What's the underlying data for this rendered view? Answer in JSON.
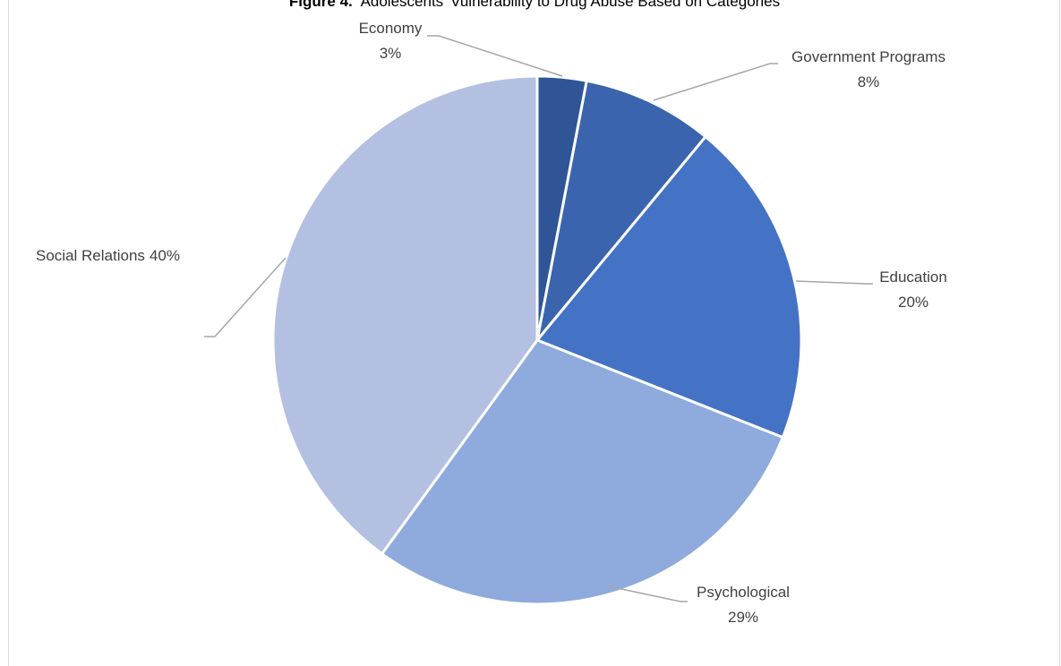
{
  "chart_data": {
    "type": "pie",
    "title": {
      "prefix": "Figure 4.",
      "text": "Adolescents' Vulnerability to Drug Abuse Based on Categories"
    },
    "categories": [
      "Economy",
      "Government Programs",
      "Education",
      "Psychological",
      "Social Relations"
    ],
    "values": [
      3,
      8,
      20,
      29,
      40
    ],
    "value_labels": [
      "3%",
      "8%",
      "20%",
      "29%",
      "40%"
    ],
    "colors": [
      "#2f5597",
      "#3a64ad",
      "#4472c4",
      "#8faadc",
      "#b4c0e2"
    ],
    "legend": "none",
    "data_labels": "outside with leader lines"
  }
}
